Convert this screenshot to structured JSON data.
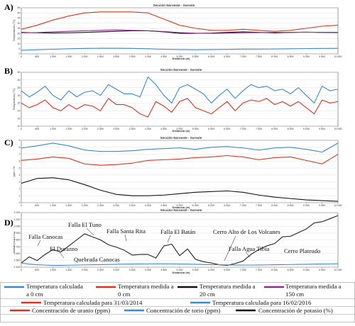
{
  "chart_data": [
    {
      "panel": "A)",
      "type": "line",
      "title": "Sección Noroeste - Sureste",
      "xlabel": "Distancia (m)",
      "ylabel": "Temperatura (°C)",
      "x_ticks": [
        "0",
        "500",
        "1 000",
        "1 500",
        "2 000",
        "2 500",
        "3 000",
        "3 500",
        "4 000",
        "4 500",
        "5 000",
        "5 500",
        "6 000",
        "6 500",
        "7 000",
        "7 500",
        "8 000",
        "8 500",
        "9 000",
        "9 500",
        "10 000"
      ],
      "y_ticks": [
        "0",
        "5",
        "10",
        "15",
        "20",
        "25",
        "30",
        "35",
        "40",
        "45"
      ],
      "xlim": [
        0,
        10000
      ],
      "ylim": [
        0,
        45
      ],
      "x": [
        0,
        500,
        1000,
        1500,
        2000,
        2500,
        3000,
        3500,
        4000,
        4500,
        5000,
        5500,
        6000,
        6500,
        7000,
        7500,
        8000,
        8500,
        9000,
        9500,
        10000
      ],
      "series": [
        {
          "color": "#d9341f",
          "values": [
            24,
            28,
            33,
            37,
            40,
            41,
            41,
            41,
            40,
            34,
            28,
            25,
            23,
            23,
            24,
            23,
            22,
            23,
            25,
            27,
            28
          ]
        },
        {
          "color": "#111111",
          "values": [
            21,
            20.6,
            20.4,
            20.6,
            21,
            21.5,
            22,
            22.5,
            22.5,
            21.5,
            20,
            20,
            20.3,
            21,
            21.5,
            21,
            20.5,
            21,
            21.2,
            21,
            20.8
          ]
        },
        {
          "color": "#8e2c86",
          "values": [
            20.6,
            20.8,
            21.5,
            22,
            22.6,
            23,
            23.4,
            23,
            22.6,
            21.8,
            20.8,
            20.2,
            20,
            20.2,
            20.6,
            20.8,
            21,
            21,
            21.2,
            21,
            21
          ]
        },
        {
          "color": "#3a88d0",
          "values": [
            3.5,
            4,
            4.5,
            5,
            5.3,
            5.5,
            5.5,
            5.3,
            5,
            4.5,
            4.2,
            4,
            4.2,
            4.4,
            4.6,
            4.6,
            4.8,
            5,
            5.2,
            5.3,
            5.4
          ]
        }
      ]
    },
    {
      "panel": "B)",
      "type": "line",
      "title": "Sección Noroeste - Sureste",
      "xlabel": "Distancia (m)",
      "ylabel": "Temperatura (°C)",
      "x_ticks": [
        "0",
        "500",
        "1 000",
        "1 500",
        "2 000",
        "2 500",
        "3 000",
        "3 500",
        "4 000",
        "4 500",
        "5 000",
        "5 500",
        "6 000",
        "6 500",
        "7 000",
        "7 500",
        "8 000",
        "8 500",
        "9 000",
        "9 500",
        "10 000"
      ],
      "y_ticks": [
        "10",
        "15",
        "20",
        "25",
        "30",
        "35",
        "40",
        "45"
      ],
      "xlim": [
        0,
        10000
      ],
      "ylim": [
        10,
        45
      ],
      "x": [
        0,
        250,
        500,
        750,
        1000,
        1250,
        1500,
        1750,
        2000,
        2250,
        2500,
        2750,
        3000,
        3250,
        3500,
        3750,
        4000,
        4250,
        4500,
        4750,
        5000,
        5250,
        5500,
        5750,
        6000,
        6250,
        6500,
        6750,
        7000,
        7250,
        7500,
        7750,
        8000,
        8250,
        8500,
        8750,
        9000,
        9250,
        9500,
        9750,
        10000
      ],
      "series": [
        {
          "color": "#3a88d0",
          "values": [
            33,
            29,
            32,
            36,
            30,
            27,
            33,
            29,
            32,
            33,
            30,
            37,
            34,
            31,
            31,
            29,
            42,
            37,
            30,
            25,
            35,
            37,
            34,
            31,
            25,
            30,
            34,
            28,
            33,
            37,
            35,
            36,
            33,
            34,
            31,
            35,
            30,
            25,
            36,
            33,
            34
          ]
        },
        {
          "color": "#d9341f",
          "values": [
            25,
            22,
            24,
            27,
            22,
            20,
            24,
            21,
            24,
            23,
            20,
            28,
            24,
            24,
            22,
            18,
            16,
            26,
            23,
            19,
            26,
            28,
            22,
            20,
            18,
            22,
            26,
            20,
            25,
            27,
            26,
            28,
            24,
            26,
            23,
            26,
            22,
            18,
            27,
            25,
            26
          ]
        }
      ]
    },
    {
      "panel": "C)",
      "type": "line",
      "title": "Sección Noroeste - Sureste",
      "xlabel": "Distancia (m)",
      "ylabel": "ppm / %",
      "x_ticks": [
        "0",
        "500",
        "1 000",
        "1 500",
        "2 000",
        "2 500",
        "3 000",
        "3 500",
        "4 000",
        "4 500",
        "5 000",
        "5 500",
        "6 000",
        "6 500",
        "7 000",
        "7 500",
        "8 000",
        "8 500",
        "9 000",
        "9 500",
        "10 000"
      ],
      "y_ticks": [
        "0",
        "1",
        "2",
        "3",
        "4",
        "5",
        "6",
        "7",
        "8",
        "9"
      ],
      "xlim": [
        0,
        10000
      ],
      "ylim": [
        0,
        9
      ],
      "x": [
        0,
        500,
        1000,
        1500,
        2000,
        2500,
        3000,
        3500,
        4000,
        4500,
        5000,
        5500,
        6000,
        6500,
        7000,
        7500,
        8000,
        8500,
        9000,
        9500,
        10000
      ],
      "series": [
        {
          "color": "#3a88d0",
          "values": [
            7.9,
            8.2,
            8.6,
            8.2,
            7.6,
            7.4,
            7.4,
            7.5,
            7.7,
            7.8,
            7.9,
            7.7,
            8.0,
            8.1,
            7.9,
            7.6,
            7.9,
            8.0,
            7.7,
            7.3,
            8.6
          ]
        },
        {
          "color": "#d9341f",
          "values": [
            6.1,
            6.3,
            6.6,
            6.4,
            5.6,
            5.4,
            5.5,
            5.7,
            6.1,
            6.2,
            6.3,
            6.5,
            6.6,
            6.8,
            6.6,
            6.2,
            6.5,
            6.6,
            6.1,
            5.6,
            7.0
          ]
        },
        {
          "color": "#111111",
          "values": [
            2.8,
            3.5,
            3.6,
            3.3,
            2.6,
            1.8,
            1.2,
            1.0,
            1.0,
            1.1,
            1.3,
            1.5,
            1.6,
            1.7,
            1.5,
            1.1,
            0.8,
            0.6,
            0.4,
            0.3,
            0.2
          ]
        }
      ]
    },
    {
      "panel": "D)",
      "type": "line",
      "title": "Sección Noroeste - Sureste",
      "xlabel": "Distancia (m)",
      "ylabel": "Altitud (m.s.n.m.)",
      "x_ticks": [
        "0",
        "500",
        "1 000",
        "1 500",
        "2 000",
        "2 500",
        "3 000",
        "3 500",
        "4 000",
        "4 500",
        "5 000",
        "5 500",
        "6 000",
        "6 500",
        "7 000",
        "7 500",
        "8 000",
        "8 500",
        "9 000",
        "9 500",
        "10 000"
      ],
      "y_ticks": [
        "2 400",
        "2 500",
        "2 600",
        "2 700",
        "2 800",
        "2 900",
        "3 000",
        "3 100",
        "3 200"
      ],
      "xlim": [
        0,
        10000
      ],
      "ylim": [
        2350,
        3250
      ],
      "x": [
        0,
        250,
        500,
        750,
        1000,
        1250,
        1500,
        1750,
        2000,
        2250,
        2500,
        2750,
        3000,
        3250,
        3500,
        3750,
        4000,
        4250,
        4500,
        4750,
        5000,
        5250,
        5500,
        5750,
        6000,
        6250,
        6500,
        6750,
        7000,
        7250,
        7500,
        7750,
        8000,
        8250,
        8500,
        8750,
        9000,
        9250,
        9500,
        9750,
        10000
      ],
      "series": [
        {
          "color": "#222222",
          "values": [
            2420,
            2520,
            2460,
            2560,
            2640,
            2600,
            2700,
            2800,
            2900,
            2850,
            2800,
            2720,
            2680,
            2630,
            2550,
            2560,
            2560,
            2500,
            2700,
            2730,
            2540,
            2650,
            2480,
            2440,
            2420,
            2390,
            2380,
            2410,
            2450,
            2560,
            2640,
            2700,
            2740,
            2850,
            2860,
            2920,
            2980,
            3080,
            3100,
            3150,
            3200
          ]
        },
        {
          "color": "#3a88d0",
          "values": [
            2420,
            2400,
            2390,
            2385,
            2380,
            2380,
            2382,
            2385,
            2388,
            2390,
            2392,
            2395,
            2398,
            2400,
            2402,
            2403,
            2404,
            2405,
            2405,
            2404,
            2402,
            2400,
            2398,
            2395,
            2392,
            2390,
            2388,
            2386,
            2385,
            2385,
            2386,
            2388,
            2390,
            2392,
            2394,
            2396,
            2398,
            2400,
            2402,
            2404,
            2406
          ]
        }
      ],
      "annotations": [
        "Falla Canocas",
        "Falla El Tuno",
        "Falla Santa Rita",
        "Falla El Batán",
        "Cerro Alto de Los Volcanes",
        "El Durazno",
        "Quebrada Canocas",
        "Falla Agua Tibia",
        "Cerro Plateado"
      ]
    }
  ],
  "legend": {
    "row1": [
      {
        "color": "#3a88d0",
        "line1": "Temperatura calculada",
        "line2": "a 0 cm"
      },
      {
        "color": "#d9341f",
        "line1": "Temperatura medida a",
        "line2": "0 cm"
      },
      {
        "color": "#111111",
        "line1": "Temperatura medida a",
        "line2": "20 cm"
      },
      {
        "color": "#8e2c86",
        "line1": "Temperatura medida a",
        "line2": "150 cm"
      }
    ],
    "row2": [
      {
        "color": "#d9341f",
        "text": "Temperatura calculada para 31/03/2014"
      },
      {
        "color": "#3a88d0",
        "text": "Temperatura calculada para 16/02/2016"
      }
    ],
    "row3": [
      {
        "color": "#d9341f",
        "text": "Concentración de uranio (ppm)"
      },
      {
        "color": "#3a88d0",
        "text": "Concentración de torio (ppm)"
      },
      {
        "color": "#111111",
        "text": "Concentración de potasio (%)"
      }
    ]
  }
}
